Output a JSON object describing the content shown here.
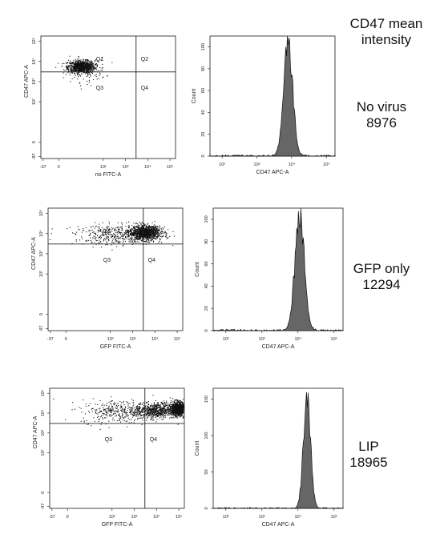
{
  "header": {
    "line1": "CD47 mean",
    "line2": "intensity"
  },
  "samples": [
    {
      "name": "No virus",
      "value": "8976"
    },
    {
      "name": "GFP only",
      "value": "12294"
    },
    {
      "name": "LIP",
      "value": "18965"
    }
  ],
  "chart_data": [
    {
      "type": "scatter",
      "panel": "No virus dot plot",
      "xlabel": "no FITC-A",
      "ylabel": "CD47 APC-A",
      "x_ticks": [
        "-37",
        "0",
        "10²",
        "10³",
        "10⁴",
        "10⁵"
      ],
      "y_ticks": [
        "-97",
        "0",
        "10²",
        "10³",
        "10⁴",
        "10⁵"
      ],
      "quadrants": [
        "Q1",
        "Q2",
        "Q3",
        "Q4"
      ],
      "gate": {
        "x": 3000,
        "y": 3000
      },
      "clusters": [
        {
          "center_log_x": 1.0,
          "center_log_y": 3.75,
          "spread_x": 0.3,
          "spread_y": 0.15,
          "n": 900
        },
        {
          "center_log_x": 1.2,
          "center_log_y": 3.6,
          "spread_x": 0.45,
          "spread_y": 0.3,
          "n": 140
        }
      ]
    },
    {
      "type": "area",
      "panel": "No virus histogram",
      "xlabel": "CD47 APC-A",
      "ylabel": "Count",
      "x_ticks": [
        "10²",
        "10³",
        "10⁴",
        "10⁵"
      ],
      "y_ticks": [
        "0",
        "20",
        "40",
        "60",
        "80",
        "100"
      ],
      "ylim": [
        0,
        110
      ],
      "peak_log": 3.9,
      "peak_count": 106,
      "width_log": 0.13
    },
    {
      "type": "scatter",
      "panel": "GFP only dot plot",
      "xlabel": "GFP FITC-A",
      "ylabel": "CD47 APC-A",
      "x_ticks": [
        "-37",
        "0",
        "10²",
        "10³",
        "10⁴",
        "10⁵"
      ],
      "y_ticks": [
        "-97",
        "0",
        "10²",
        "10³",
        "10⁴",
        "10⁵"
      ],
      "quadrants": [
        "Q1",
        "Q2",
        "Q3",
        "Q4"
      ],
      "gate": {
        "x": 3000,
        "y": 3000
      },
      "clusters": [
        {
          "center_log_x": 3.55,
          "center_log_y": 4.05,
          "spread_x": 0.35,
          "spread_y": 0.17,
          "n": 1100
        },
        {
          "center_log_x": 2.4,
          "center_log_y": 3.95,
          "spread_x": 1.0,
          "spread_y": 0.25,
          "n": 450
        }
      ]
    },
    {
      "type": "area",
      "panel": "GFP only histogram",
      "xlabel": "CD47 APC-A",
      "ylabel": "Count",
      "x_ticks": [
        "10²",
        "10³",
        "10⁴",
        "10⁵"
      ],
      "y_ticks": [
        "0",
        "20",
        "40",
        "60",
        "80",
        "100"
      ],
      "ylim": [
        0,
        110
      ],
      "peak_log": 4.05,
      "peak_count": 104,
      "width_log": 0.13
    },
    {
      "type": "scatter",
      "panel": "LIP dot plot",
      "xlabel": "GFP FITC-A",
      "ylabel": "CD47 APC-A",
      "x_ticks": [
        "-37",
        "0",
        "10²",
        "10³",
        "10⁴",
        "10⁵"
      ],
      "y_ticks": [
        "-97",
        "0",
        "10²",
        "10³",
        "10⁴",
        "10⁵"
      ],
      "quadrants": [
        "Q1",
        "Q2",
        "Q3",
        "Q4"
      ],
      "gate": {
        "x": 3000,
        "y": 3000
      },
      "clusters": [
        {
          "center_log_x": 4.95,
          "center_log_y": 4.25,
          "spread_x": 0.15,
          "spread_y": 0.17,
          "n": 900
        },
        {
          "center_log_x": 4.0,
          "center_log_y": 4.15,
          "spread_x": 0.5,
          "spread_y": 0.2,
          "n": 650
        },
        {
          "center_log_x": 2.4,
          "center_log_y": 4.1,
          "spread_x": 0.9,
          "spread_y": 0.3,
          "n": 350
        }
      ]
    },
    {
      "type": "area",
      "panel": "LIP histogram",
      "xlabel": "CD47 APC-A",
      "ylabel": "Count",
      "x_ticks": [
        "10²",
        "10³",
        "10⁴",
        "10⁵"
      ],
      "y_ticks": [
        "0",
        "50",
        "100",
        "150"
      ],
      "ylim": [
        0,
        165
      ],
      "peak_log": 4.25,
      "peak_count": 150,
      "width_log": 0.1
    }
  ]
}
